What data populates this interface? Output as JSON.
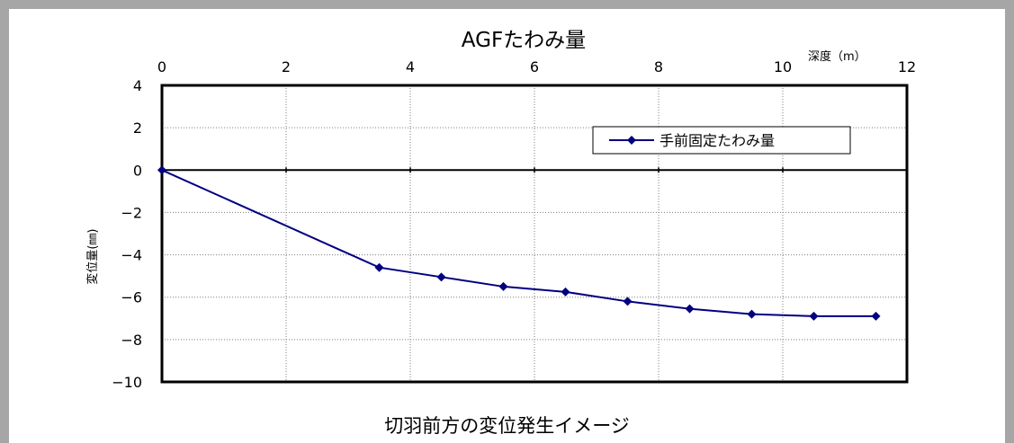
{
  "chart_data": {
    "type": "line",
    "title": "AGFたわみ量",
    "xlabel": "深度（m）",
    "ylabel": "変位量(㎜)",
    "xlim": [
      0,
      12
    ],
    "ylim": [
      -10,
      4
    ],
    "x_ticks": [
      0,
      2,
      4,
      6,
      8,
      10,
      12
    ],
    "y_ticks": [
      4,
      2,
      0,
      -2,
      -4,
      -6,
      -8,
      -10
    ],
    "x_axis_position": "top",
    "grid": true,
    "legend": "top-right",
    "series": [
      {
        "name": "手前固定たわみ量",
        "color": "#000080",
        "marker": "diamond",
        "x": [
          0,
          3.5,
          4.5,
          5.5,
          6.5,
          7.5,
          8.5,
          9.5,
          10.5,
          11.5
        ],
        "y": [
          0,
          -4.6,
          -5.05,
          -5.5,
          -5.75,
          -6.2,
          -6.55,
          -6.8,
          -6.9,
          -6.9
        ]
      }
    ]
  },
  "caption": "切羽前方の変位発生イメージ"
}
